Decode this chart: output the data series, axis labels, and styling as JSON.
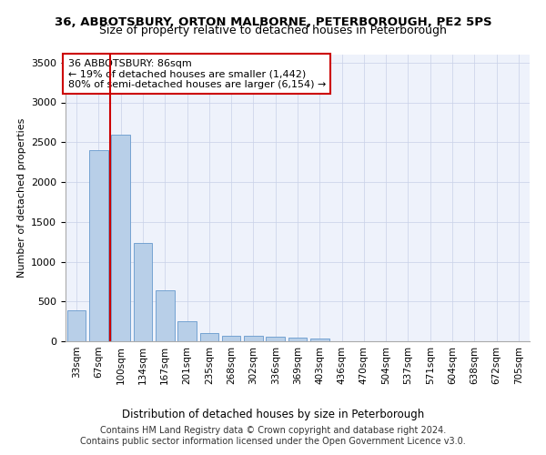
{
  "title_line1": "36, ABBOTSBURY, ORTON MALBORNE, PETERBOROUGH, PE2 5PS",
  "title_line2": "Size of property relative to detached houses in Peterborough",
  "xlabel": "Distribution of detached houses by size in Peterborough",
  "ylabel": "Number of detached properties",
  "categories": [
    "33sqm",
    "67sqm",
    "100sqm",
    "134sqm",
    "167sqm",
    "201sqm",
    "235sqm",
    "268sqm",
    "302sqm",
    "336sqm",
    "369sqm",
    "403sqm",
    "436sqm",
    "470sqm",
    "504sqm",
    "537sqm",
    "571sqm",
    "604sqm",
    "638sqm",
    "672sqm",
    "705sqm"
  ],
  "values": [
    390,
    2400,
    2590,
    1230,
    640,
    250,
    105,
    70,
    65,
    55,
    45,
    40,
    0,
    0,
    0,
    0,
    0,
    0,
    0,
    0,
    0
  ],
  "bar_color": "#b8cfe8",
  "bar_edge_color": "#6699cc",
  "vline_color": "#cc0000",
  "vline_pos": 1.5,
  "annotation_text": "36 ABBOTSBURY: 86sqm\n← 19% of detached houses are smaller (1,442)\n80% of semi-detached houses are larger (6,154) →",
  "annotation_box_facecolor": "#ffffff",
  "annotation_box_edgecolor": "#cc0000",
  "ylim": [
    0,
    3600
  ],
  "yticks": [
    0,
    500,
    1000,
    1500,
    2000,
    2500,
    3000,
    3500
  ],
  "footer_line1": "Contains HM Land Registry data © Crown copyright and database right 2024.",
  "footer_line2": "Contains public sector information licensed under the Open Government Licence v3.0.",
  "bg_color": "#eef2fb",
  "title_fontsize": 9.5,
  "subtitle_fontsize": 9,
  "ylabel_fontsize": 8,
  "xlabel_fontsize": 8.5,
  "tick_fontsize": 8,
  "xtick_fontsize": 7.5,
  "annot_fontsize": 8,
  "footer_fontsize": 7
}
